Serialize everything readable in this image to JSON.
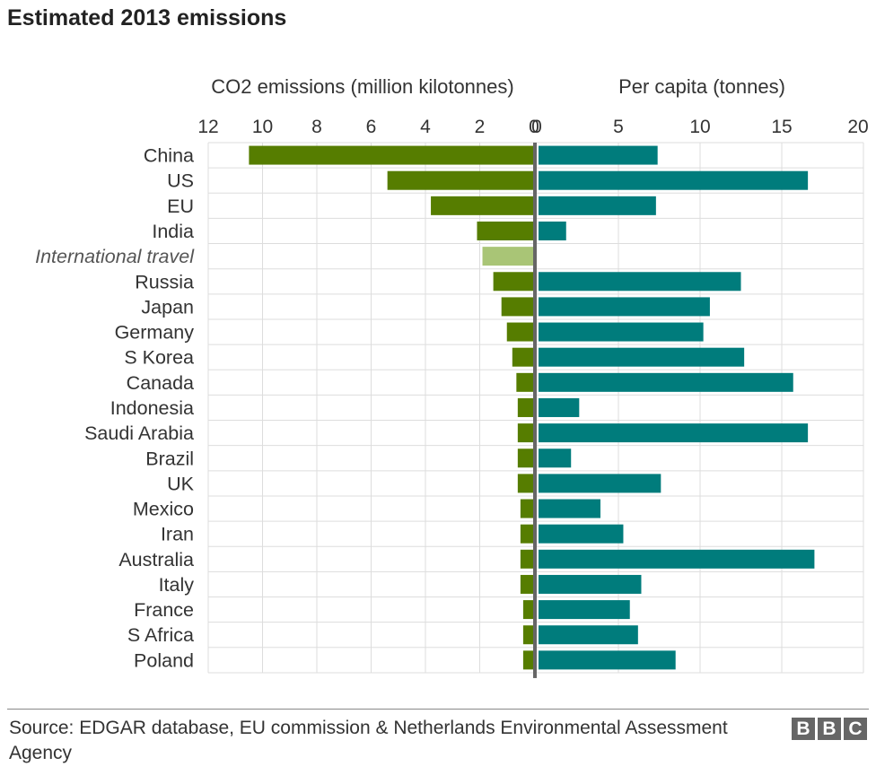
{
  "title": "Estimated 2013 emissions",
  "source": "Source: EDGAR database, EU commission & Netherlands Environmental Assessment Agency",
  "logo": [
    "B",
    "B",
    "C"
  ],
  "colors": {
    "emissions": "#567d00",
    "emissions_highlight": "#a9c576",
    "per_capita": "#007c7c",
    "grid": "#dddddd",
    "axis": "#666666"
  },
  "chart_data": {
    "type": "bar",
    "categories": [
      "China",
      "US",
      "EU",
      "India",
      "International travel",
      "Russia",
      "Japan",
      "Germany",
      "S Korea",
      "Canada",
      "Indonesia",
      "Saudi Arabia",
      "Brazil",
      "UK",
      "Mexico",
      "Iran",
      "Australia",
      "Italy",
      "France",
      "S Africa",
      "Poland"
    ],
    "italic_categories": [
      "International travel"
    ],
    "panels": [
      {
        "name": "CO2 emissions (million kilotonnes)",
        "direction": "left",
        "xlim": [
          0,
          12
        ],
        "ticks": [
          12,
          10,
          8,
          6,
          4,
          2,
          0
        ],
        "values": [
          10.5,
          5.4,
          3.8,
          2.1,
          1.9,
          1.5,
          1.2,
          1.0,
          0.8,
          0.65,
          0.6,
          0.6,
          0.6,
          0.6,
          0.5,
          0.5,
          0.5,
          0.5,
          0.4,
          0.4,
          0.4
        ]
      },
      {
        "name": "Per capita (tonnes)",
        "direction": "right",
        "xlim": [
          0,
          20
        ],
        "ticks": [
          0,
          5,
          10,
          15,
          20
        ],
        "values": [
          7.4,
          16.6,
          7.3,
          1.8,
          null,
          12.5,
          10.6,
          10.2,
          12.7,
          15.7,
          2.6,
          16.6,
          2.1,
          7.6,
          3.9,
          5.3,
          17.0,
          6.4,
          5.7,
          6.2,
          8.5
        ]
      }
    ],
    "grid": true
  }
}
